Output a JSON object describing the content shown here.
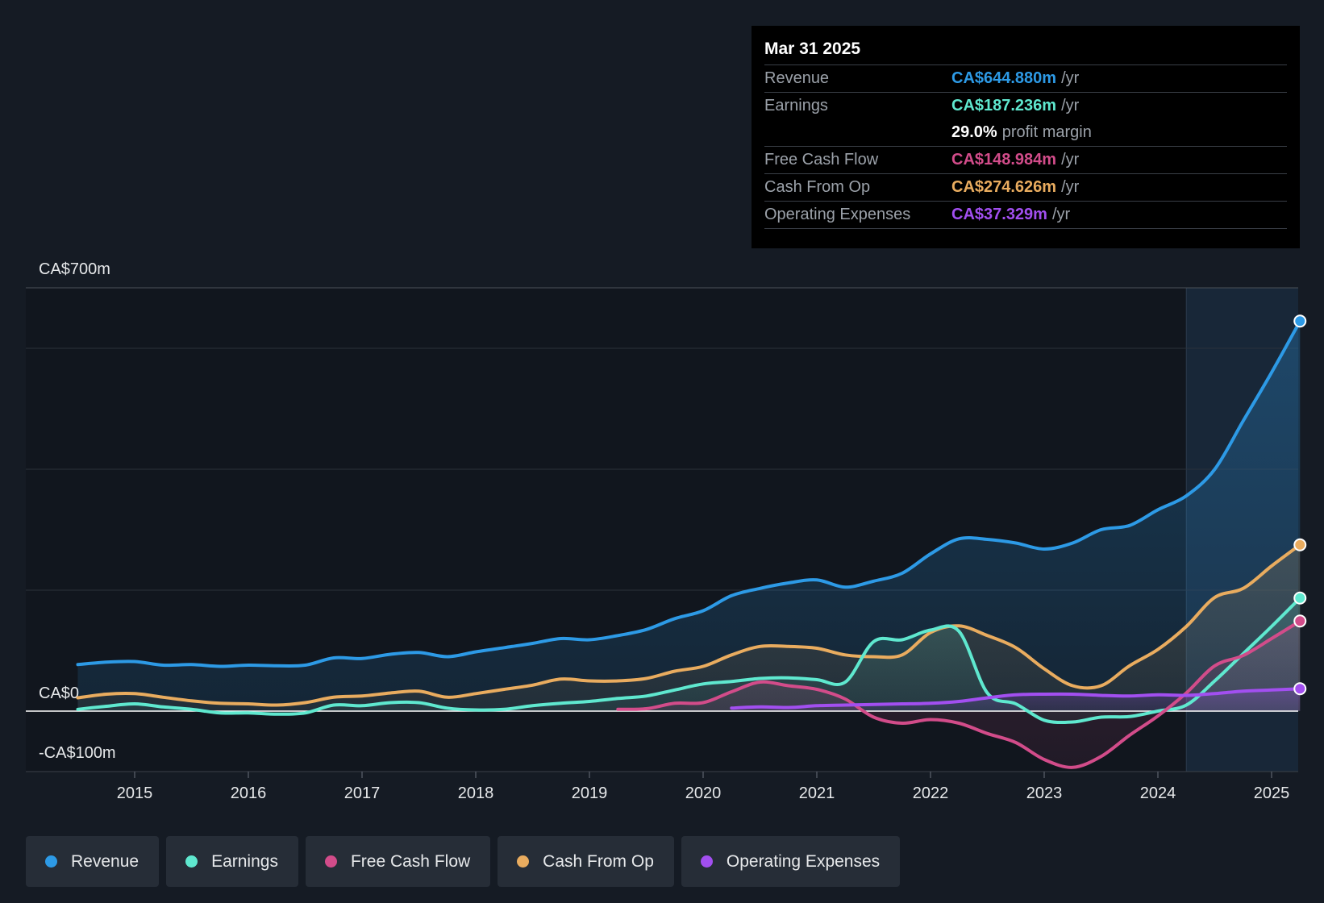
{
  "tooltip": {
    "date": "Mar 31 2025",
    "rows": [
      {
        "label": "Revenue",
        "value": "CA$644.880m",
        "unit": "/yr",
        "color": "#2d9ae6"
      },
      {
        "label": "Earnings",
        "value": "CA$187.236m",
        "unit": "/yr",
        "color": "#5fe8cf"
      },
      {
        "label": "",
        "value": "29.0%",
        "unit": "profit margin",
        "color": "#ffffff"
      },
      {
        "label": "Free Cash Flow",
        "value": "CA$148.984m",
        "unit": "/yr",
        "color": "#d24c8a"
      },
      {
        "label": "Cash From Op",
        "value": "CA$274.626m",
        "unit": "/yr",
        "color": "#e9ac5f"
      },
      {
        "label": "Operating Expenses",
        "value": "CA$37.329m",
        "unit": "/yr",
        "color": "#a24ff0"
      }
    ]
  },
  "legend": [
    {
      "label": "Revenue",
      "color": "#2d9ae6"
    },
    {
      "label": "Earnings",
      "color": "#5fe8cf"
    },
    {
      "label": "Free Cash Flow",
      "color": "#d24c8a"
    },
    {
      "label": "Cash From Op",
      "color": "#e9ac5f"
    },
    {
      "label": "Operating Expenses",
      "color": "#a24ff0"
    }
  ],
  "chart_data": {
    "type": "area",
    "title": "",
    "xlabel": "",
    "ylabel": "",
    "ylim": [
      -100,
      700
    ],
    "xlim": [
      2014.5,
      2025.25
    ],
    "y_axis_labels": [
      "CA$700m",
      "CA$0",
      "-CA$100m"
    ],
    "y_axis_label_values": [
      700,
      0,
      -100
    ],
    "gridlines": [
      0,
      200,
      400,
      600,
      700
    ],
    "x_ticks": [
      2015,
      2016,
      2017,
      2018,
      2019,
      2020,
      2021,
      2022,
      2023,
      2024,
      2025
    ],
    "x_tick_labels": [
      "2015",
      "2016",
      "2017",
      "2018",
      "2019",
      "2020",
      "2021",
      "2022",
      "2023",
      "2024",
      "2025"
    ],
    "highlight_from": 2024.25,
    "series": [
      {
        "name": "Revenue",
        "color": "#2d9ae6",
        "points": [
          [
            2014.5,
            77
          ],
          [
            2014.75,
            81
          ],
          [
            2015,
            82
          ],
          [
            2015.25,
            76
          ],
          [
            2015.5,
            77
          ],
          [
            2015.75,
            74
          ],
          [
            2016,
            76
          ],
          [
            2016.25,
            75
          ],
          [
            2016.5,
            76
          ],
          [
            2016.75,
            88
          ],
          [
            2017,
            87
          ],
          [
            2017.25,
            94
          ],
          [
            2017.5,
            97
          ],
          [
            2017.75,
            90
          ],
          [
            2018,
            98
          ],
          [
            2018.25,
            105
          ],
          [
            2018.5,
            112
          ],
          [
            2018.75,
            120
          ],
          [
            2019,
            118
          ],
          [
            2019.25,
            125
          ],
          [
            2019.5,
            135
          ],
          [
            2019.75,
            153
          ],
          [
            2020,
            166
          ],
          [
            2020.25,
            191
          ],
          [
            2020.5,
            203
          ],
          [
            2020.75,
            212
          ],
          [
            2021,
            217
          ],
          [
            2021.25,
            205
          ],
          [
            2021.5,
            215
          ],
          [
            2021.75,
            228
          ],
          [
            2022,
            260
          ],
          [
            2022.25,
            285
          ],
          [
            2022.5,
            284
          ],
          [
            2022.75,
            278
          ],
          [
            2023,
            268
          ],
          [
            2023.25,
            278
          ],
          [
            2023.5,
            300
          ],
          [
            2023.75,
            307
          ],
          [
            2024,
            333
          ],
          [
            2024.25,
            356
          ],
          [
            2024.5,
            400
          ],
          [
            2024.75,
            480
          ],
          [
            2025,
            560
          ],
          [
            2025.25,
            645
          ]
        ]
      },
      {
        "name": "Cash From Op",
        "color": "#e9ac5f",
        "points": [
          [
            2014.5,
            22
          ],
          [
            2014.75,
            28
          ],
          [
            2015,
            29
          ],
          [
            2015.25,
            23
          ],
          [
            2015.5,
            17
          ],
          [
            2015.75,
            13
          ],
          [
            2016,
            12
          ],
          [
            2016.25,
            10
          ],
          [
            2016.5,
            14
          ],
          [
            2016.75,
            23
          ],
          [
            2017,
            25
          ],
          [
            2017.25,
            30
          ],
          [
            2017.5,
            33
          ],
          [
            2017.75,
            23
          ],
          [
            2018,
            29
          ],
          [
            2018.25,
            36
          ],
          [
            2018.5,
            43
          ],
          [
            2018.75,
            53
          ],
          [
            2019,
            50
          ],
          [
            2019.25,
            50
          ],
          [
            2019.5,
            54
          ],
          [
            2019.75,
            66
          ],
          [
            2020,
            74
          ],
          [
            2020.25,
            93
          ],
          [
            2020.5,
            107
          ],
          [
            2020.75,
            107
          ],
          [
            2021,
            104
          ],
          [
            2021.25,
            93
          ],
          [
            2021.5,
            90
          ],
          [
            2021.75,
            93
          ],
          [
            2022,
            130
          ],
          [
            2022.25,
            141
          ],
          [
            2022.5,
            125
          ],
          [
            2022.75,
            105
          ],
          [
            2023,
            70
          ],
          [
            2023.25,
            42
          ],
          [
            2023.5,
            42
          ],
          [
            2023.75,
            75
          ],
          [
            2024,
            102
          ],
          [
            2024.25,
            140
          ],
          [
            2024.5,
            188
          ],
          [
            2024.75,
            203
          ],
          [
            2025,
            240
          ],
          [
            2025.25,
            275
          ]
        ]
      },
      {
        "name": "Earnings",
        "color": "#5fe8cf",
        "points": [
          [
            2014.5,
            3
          ],
          [
            2014.75,
            8
          ],
          [
            2015,
            12
          ],
          [
            2015.25,
            7
          ],
          [
            2015.5,
            3
          ],
          [
            2015.75,
            -3
          ],
          [
            2016,
            -3
          ],
          [
            2016.25,
            -5
          ],
          [
            2016.5,
            -3
          ],
          [
            2016.75,
            10
          ],
          [
            2017,
            9
          ],
          [
            2017.25,
            14
          ],
          [
            2017.5,
            14
          ],
          [
            2017.75,
            5
          ],
          [
            2018,
            2
          ],
          [
            2018.25,
            3
          ],
          [
            2018.5,
            9
          ],
          [
            2018.75,
            13
          ],
          [
            2019,
            16
          ],
          [
            2019.25,
            21
          ],
          [
            2019.5,
            25
          ],
          [
            2019.75,
            35
          ],
          [
            2020,
            45
          ],
          [
            2020.25,
            49
          ],
          [
            2020.5,
            54
          ],
          [
            2020.75,
            55
          ],
          [
            2021,
            52
          ],
          [
            2021.25,
            48
          ],
          [
            2021.5,
            115
          ],
          [
            2021.75,
            118
          ],
          [
            2022,
            134
          ],
          [
            2022.25,
            132
          ],
          [
            2022.5,
            30
          ],
          [
            2022.75,
            12
          ],
          [
            2023,
            -15
          ],
          [
            2023.25,
            -18
          ],
          [
            2023.5,
            -10
          ],
          [
            2023.75,
            -9
          ],
          [
            2024,
            0
          ],
          [
            2024.25,
            10
          ],
          [
            2024.5,
            50
          ],
          [
            2024.75,
            95
          ],
          [
            2025,
            140
          ],
          [
            2025.25,
            187
          ]
        ]
      },
      {
        "name": "Free Cash Flow",
        "color": "#d24c8a",
        "points": [
          [
            2019.25,
            3
          ],
          [
            2019.5,
            4
          ],
          [
            2019.75,
            13
          ],
          [
            2020,
            14
          ],
          [
            2020.25,
            32
          ],
          [
            2020.5,
            48
          ],
          [
            2020.75,
            42
          ],
          [
            2021,
            36
          ],
          [
            2021.25,
            20
          ],
          [
            2021.5,
            -10
          ],
          [
            2021.75,
            -20
          ],
          [
            2022,
            -14
          ],
          [
            2022.25,
            -20
          ],
          [
            2022.5,
            -37
          ],
          [
            2022.75,
            -52
          ],
          [
            2023,
            -80
          ],
          [
            2023.25,
            -93
          ],
          [
            2023.5,
            -75
          ],
          [
            2023.75,
            -40
          ],
          [
            2024,
            -8
          ],
          [
            2024.25,
            30
          ],
          [
            2024.5,
            75
          ],
          [
            2024.75,
            92
          ],
          [
            2025,
            120
          ],
          [
            2025.25,
            149
          ]
        ]
      },
      {
        "name": "Operating Expenses",
        "color": "#a24ff0",
        "points": [
          [
            2020.25,
            5
          ],
          [
            2020.5,
            7
          ],
          [
            2020.75,
            6
          ],
          [
            2021,
            9
          ],
          [
            2021.25,
            10
          ],
          [
            2021.5,
            11
          ],
          [
            2021.75,
            12
          ],
          [
            2022,
            13
          ],
          [
            2022.25,
            16
          ],
          [
            2022.5,
            22
          ],
          [
            2022.75,
            27
          ],
          [
            2023,
            28
          ],
          [
            2023.25,
            28
          ],
          [
            2023.5,
            26
          ],
          [
            2023.75,
            25
          ],
          [
            2024,
            27
          ],
          [
            2024.25,
            26
          ],
          [
            2024.5,
            29
          ],
          [
            2024.75,
            33
          ],
          [
            2025,
            35
          ],
          [
            2025.25,
            37
          ]
        ]
      }
    ]
  }
}
